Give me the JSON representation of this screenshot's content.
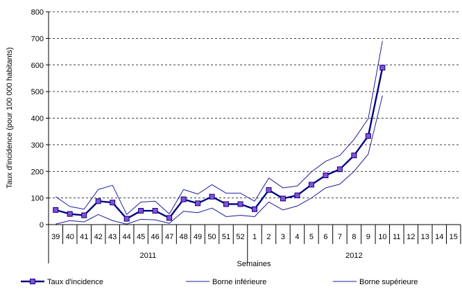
{
  "chart_data": {
    "type": "line",
    "xlabel": "Semaines",
    "ylabel": "Taux d'incidence (pour 100 000 habitants)",
    "ylim": [
      0,
      800
    ],
    "yticks": [
      0,
      100,
      200,
      300,
      400,
      500,
      600,
      700,
      800
    ],
    "grid": "horizontal dashed",
    "legend": "bottom",
    "categories": [
      "39",
      "40",
      "41",
      "42",
      "43",
      "44",
      "45",
      "46",
      "47",
      "48",
      "49",
      "50",
      "51",
      "52",
      "1",
      "2",
      "3",
      "4",
      "5",
      "6",
      "7",
      "8",
      "9",
      "10",
      "11",
      "12",
      "13",
      "14",
      "15"
    ],
    "groups": [
      {
        "label": "2011",
        "start": 0,
        "end": 13
      },
      {
        "label": "2012",
        "start": 14,
        "end": 28
      }
    ],
    "series": [
      {
        "name": "Taux d'incidence",
        "color": "#000080",
        "marker": "#8a4fd6",
        "values": [
          55,
          40,
          35,
          88,
          83,
          22,
          52,
          52,
          25,
          95,
          80,
          105,
          77,
          77,
          58,
          130,
          98,
          110,
          150,
          185,
          208,
          260,
          333,
          590,
          null,
          null,
          null,
          null,
          null
        ]
      },
      {
        "name": "Borne inférieure",
        "color": "#1c1c9c",
        "values": [
          2,
          15,
          10,
          38,
          15,
          2,
          20,
          18,
          5,
          50,
          45,
          62,
          30,
          35,
          30,
          85,
          55,
          70,
          100,
          138,
          152,
          200,
          265,
          485,
          null,
          null,
          null,
          null,
          null
        ]
      },
      {
        "name": "Borne supérieure",
        "color": "#1c1c9c",
        "values": [
          105,
          68,
          58,
          132,
          148,
          38,
          85,
          88,
          40,
          132,
          115,
          150,
          118,
          118,
          88,
          175,
          138,
          145,
          198,
          238,
          260,
          320,
          398,
          690,
          null,
          null,
          null,
          null,
          null
        ]
      }
    ]
  }
}
